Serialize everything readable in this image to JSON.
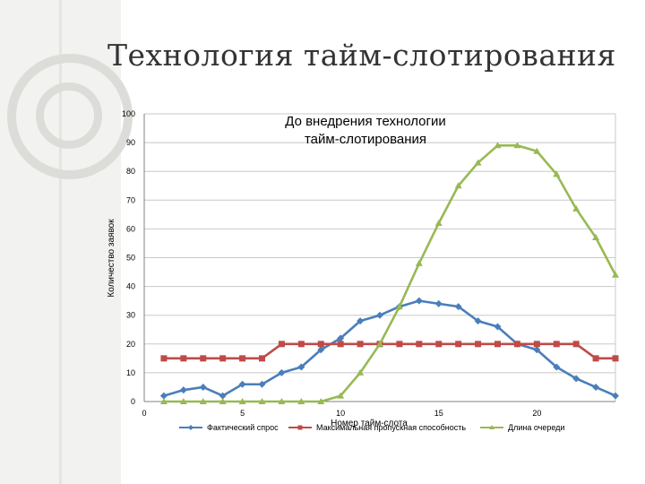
{
  "slide": {
    "title": "Технология тайм-слотирования"
  },
  "colors": {
    "fact": "#4a7ebb",
    "max": "#be4b48",
    "queue": "#98b954",
    "grid": "#c8c8c8"
  },
  "chart_data": {
    "type": "line",
    "title": "До внедрения технологии тайм-слотирования",
    "xlabel": "Номер тайм-слота",
    "ylabel": "Количество заявок",
    "xlim": [
      0,
      24
    ],
    "ylim": [
      0,
      100
    ],
    "xticks": [
      "0",
      "5",
      "10",
      "15",
      "20"
    ],
    "yticks": [
      "0",
      "10",
      "20",
      "30",
      "40",
      "50",
      "60",
      "70",
      "80",
      "90",
      "100"
    ],
    "x": [
      1,
      2,
      3,
      4,
      5,
      6,
      7,
      8,
      9,
      10,
      11,
      12,
      13,
      14,
      15,
      16,
      17,
      18,
      19,
      20,
      21,
      22,
      23,
      24
    ],
    "series": [
      {
        "name": "Фактический спрос",
        "marker": "diamond",
        "color": "#4a7ebb",
        "values": [
          2,
          4,
          5,
          2,
          6,
          6,
          10,
          12,
          18,
          22,
          28,
          30,
          33,
          35,
          34,
          33,
          28,
          26,
          20,
          18,
          12,
          8,
          5,
          2
        ]
      },
      {
        "name": "Максимальная пропускная способность",
        "marker": "square",
        "color": "#be4b48",
        "values": [
          15,
          15,
          15,
          15,
          15,
          15,
          20,
          20,
          20,
          20,
          20,
          20,
          20,
          20,
          20,
          20,
          20,
          20,
          20,
          20,
          20,
          20,
          15,
          15
        ]
      },
      {
        "name": "Длина очереди",
        "marker": "triangle",
        "color": "#98b954",
        "values": [
          0,
          0,
          0,
          0,
          0,
          0,
          0,
          0,
          0,
          2,
          10,
          20,
          33,
          48,
          62,
          75,
          83,
          89,
          89,
          87,
          79,
          67,
          57,
          44
        ]
      }
    ],
    "legend": "bottom",
    "grid": true
  }
}
